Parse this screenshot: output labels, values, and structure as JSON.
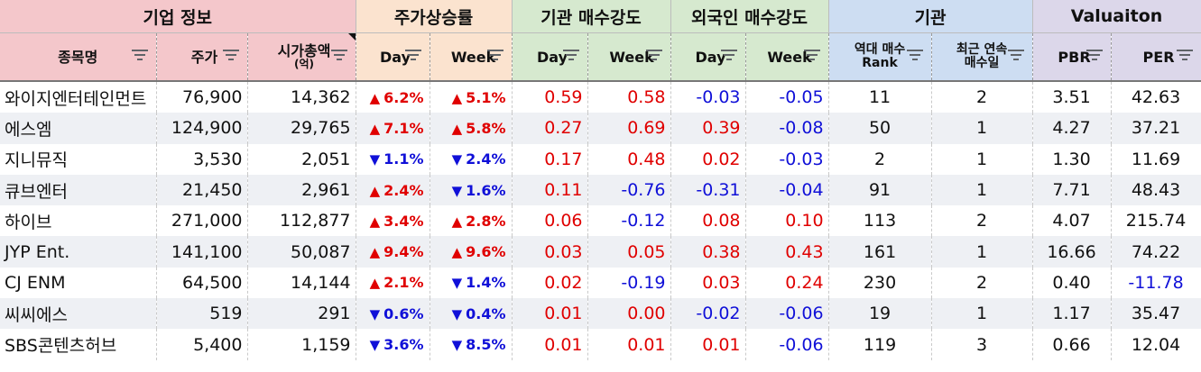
{
  "groups": [
    {
      "label": "기업 정보",
      "span": 3
    },
    {
      "label": "주가상승률",
      "span": 2
    },
    {
      "label": "기관 매수강도",
      "span": 2
    },
    {
      "label": "외국인 매수강도",
      "span": 2
    },
    {
      "label": "기관",
      "span": 2
    },
    {
      "label": "Valuaiton",
      "span": 2
    }
  ],
  "columns": {
    "name": "종목명",
    "price": "주가",
    "mcap": "시가총액",
    "mcap_unit": "(억)",
    "day": "Day",
    "week": "Week",
    "rank_line1": "역대 매수",
    "rank_line2": "Rank",
    "streak_line1": "최근 연속",
    "streak_line2": "매수일",
    "pbr": "PBR",
    "per": "PER"
  },
  "rows": [
    {
      "name": "와이지엔터테인먼트",
      "price": "76,900",
      "mcap": "14,362",
      "d_dir": "up",
      "d": "6.2%",
      "w_dir": "up",
      "w": "5.1%",
      "id": "0.59",
      "iw": "0.58",
      "fd": "-0.03",
      "fw": "-0.05",
      "rank": "11",
      "streak": "2",
      "pbr": "3.51",
      "per": "42.63"
    },
    {
      "name": "에스엠",
      "price": "124,900",
      "mcap": "29,765",
      "d_dir": "up",
      "d": "7.1%",
      "w_dir": "up",
      "w": "5.8%",
      "id": "0.27",
      "iw": "0.69",
      "fd": "0.39",
      "fw": "-0.08",
      "rank": "50",
      "streak": "1",
      "pbr": "4.27",
      "per": "37.21"
    },
    {
      "name": "지니뮤직",
      "price": "3,530",
      "mcap": "2,051",
      "d_dir": "down",
      "d": "1.1%",
      "w_dir": "down",
      "w": "2.4%",
      "id": "0.17",
      "iw": "0.48",
      "fd": "0.02",
      "fw": "-0.03",
      "rank": "2",
      "streak": "1",
      "pbr": "1.30",
      "per": "11.69"
    },
    {
      "name": "큐브엔터",
      "price": "21,450",
      "mcap": "2,961",
      "d_dir": "up",
      "d": "2.4%",
      "w_dir": "down",
      "w": "1.6%",
      "id": "0.11",
      "iw": "-0.76",
      "fd": "-0.31",
      "fw": "-0.04",
      "rank": "91",
      "streak": "1",
      "pbr": "7.71",
      "per": "48.43"
    },
    {
      "name": "하이브",
      "price": "271,000",
      "mcap": "112,877",
      "d_dir": "up",
      "d": "3.4%",
      "w_dir": "up",
      "w": "2.8%",
      "id": "0.06",
      "iw": "-0.12",
      "fd": "0.08",
      "fw": "0.10",
      "rank": "113",
      "streak": "2",
      "pbr": "4.07",
      "per": "215.74"
    },
    {
      "name": "JYP Ent.",
      "price": "141,100",
      "mcap": "50,087",
      "d_dir": "up",
      "d": "9.4%",
      "w_dir": "up",
      "w": "9.6%",
      "id": "0.03",
      "iw": "0.05",
      "fd": "0.38",
      "fw": "0.43",
      "rank": "161",
      "streak": "1",
      "pbr": "16.66",
      "per": "74.22"
    },
    {
      "name": "CJ ENM",
      "price": "64,500",
      "mcap": "14,144",
      "d_dir": "up",
      "d": "2.1%",
      "w_dir": "down",
      "w": "1.4%",
      "id": "0.02",
      "iw": "-0.19",
      "fd": "0.03",
      "fw": "0.24",
      "rank": "230",
      "streak": "2",
      "pbr": "0.40",
      "per": "-11.78"
    },
    {
      "name": "씨씨에스",
      "price": "519",
      "mcap": "291",
      "d_dir": "down",
      "d": "0.6%",
      "w_dir": "down",
      "w": "0.4%",
      "id": "0.01",
      "iw": "0.00",
      "fd": "-0.02",
      "fw": "-0.06",
      "rank": "19",
      "streak": "1",
      "pbr": "1.17",
      "per": "35.47"
    },
    {
      "name": "SBS콘텐츠허브",
      "price": "5,400",
      "mcap": "1,159",
      "d_dir": "down",
      "d": "3.6%",
      "w_dir": "down",
      "w": "8.5%",
      "id": "0.01",
      "iw": "0.01",
      "fd": "0.01",
      "fw": "-0.06",
      "rank": "119",
      "streak": "3",
      "pbr": "0.66",
      "per": "12.04"
    }
  ],
  "colors": {
    "positive": "#e00000",
    "negative": "#1010d8"
  },
  "icons": {
    "filter": "filter-icon",
    "up": "up-triangle-icon",
    "down": "down-triangle-icon"
  }
}
